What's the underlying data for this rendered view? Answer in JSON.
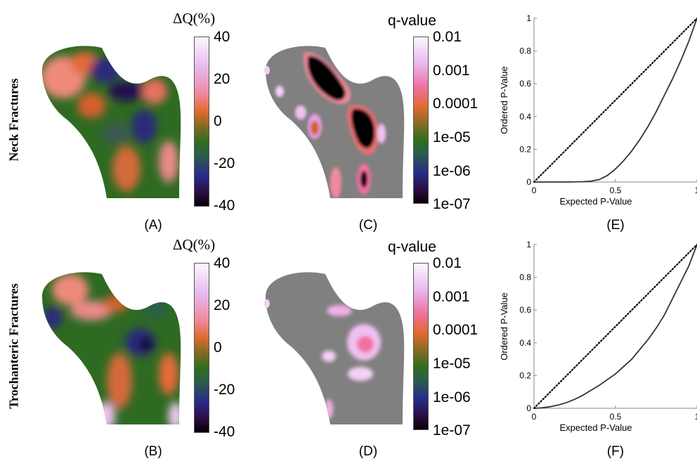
{
  "row_labels": {
    "neck": "Neck Fractures",
    "trochanteric": "Trochanteric Fractures"
  },
  "panel_labels": {
    "A": "(A)",
    "B": "(B)",
    "C": "(C)",
    "D": "(D)",
    "E": "(E)",
    "F": "(F)"
  },
  "colorbars": {
    "dq": {
      "title": "ΔQ(%)",
      "ticks": [
        "40",
        "20",
        "0",
        "-20",
        "-40"
      ]
    },
    "q": {
      "title": "q-value",
      "ticks": [
        "0.01",
        "0.001",
        "0.0001",
        "1e-05",
        "1e-06",
        "1e-07"
      ]
    }
  },
  "colors": {
    "insignificant": "#808080",
    "curve": "#333333",
    "reference": "#000000"
  },
  "chart_data": [
    {
      "type": "line",
      "panel": "(E)",
      "xlabel": "Expected P-Value",
      "ylabel": "Ordered P-Value",
      "xlim": [
        0,
        1
      ],
      "ylim": [
        0,
        1
      ],
      "xticks": [
        "0",
        "0.5",
        "1"
      ],
      "yticks": [
        "0",
        "0.2",
        "0.4",
        "0.6",
        "0.8",
        "1"
      ],
      "series": [
        {
          "style": "solid",
          "x": [
            0,
            0.1,
            0.2,
            0.3,
            0.35,
            0.4,
            0.45,
            0.5,
            0.55,
            0.6,
            0.65,
            0.7,
            0.75,
            0.8,
            0.85,
            0.9,
            0.95,
            1.0
          ],
          "y": [
            0,
            0.0,
            0.0,
            0.002,
            0.005,
            0.015,
            0.04,
            0.08,
            0.13,
            0.19,
            0.26,
            0.34,
            0.43,
            0.53,
            0.63,
            0.74,
            0.86,
            1.0
          ]
        },
        {
          "style": "dotted",
          "x": [
            0,
            1
          ],
          "y": [
            0,
            1
          ]
        }
      ]
    },
    {
      "type": "line",
      "panel": "(F)",
      "xlabel": "Expected P-Value",
      "ylabel": "Ordered P-Value",
      "xlim": [
        0,
        1
      ],
      "ylim": [
        0,
        1
      ],
      "xticks": [
        "0",
        "0.5",
        "1"
      ],
      "yticks": [
        "0",
        "0.2",
        "0.4",
        "0.6",
        "0.8",
        "1"
      ],
      "series": [
        {
          "style": "solid",
          "x": [
            0,
            0.05,
            0.1,
            0.15,
            0.2,
            0.25,
            0.3,
            0.35,
            0.4,
            0.45,
            0.5,
            0.55,
            0.6,
            0.65,
            0.7,
            0.75,
            0.8,
            0.85,
            0.9,
            0.95,
            1.0
          ],
          "y": [
            0,
            0.003,
            0.01,
            0.02,
            0.035,
            0.055,
            0.08,
            0.11,
            0.14,
            0.175,
            0.21,
            0.255,
            0.3,
            0.36,
            0.42,
            0.49,
            0.57,
            0.67,
            0.77,
            0.87,
            1.0
          ]
        },
        {
          "style": "dotted",
          "x": [
            0,
            1
          ],
          "y": [
            0,
            1
          ]
        }
      ]
    }
  ]
}
